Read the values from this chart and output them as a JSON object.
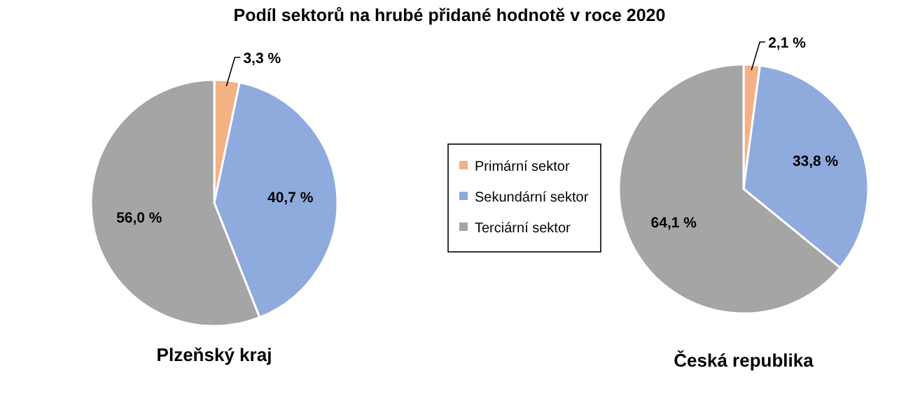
{
  "chart_data": [
    {
      "type": "pie",
      "title": "Podíl sektorů  na hrubé přidané hodnotě v roce 2020",
      "xlabel": "Plzeňský  kraj",
      "categories": [
        "Primární sektor",
        "Sekundární sektor",
        "Terciární sektor"
      ],
      "values": [
        3.3,
        40.7,
        56.0
      ],
      "value_labels": [
        "3,3 %",
        "40,7 %",
        "56,0 %"
      ],
      "colors": [
        "#f4b183",
        "#8faadc",
        "#a5a5a5"
      ],
      "legend": "right"
    },
    {
      "type": "pie",
      "xlabel": "Česká republika",
      "values": [
        2.1,
        33.8,
        64.1
      ],
      "value_labels": [
        "2,1 %",
        "33,8 %",
        "64,1 %"
      ],
      "colors": [
        "#f4b183",
        "#8faadc",
        "#a5a5a5"
      ]
    }
  ]
}
